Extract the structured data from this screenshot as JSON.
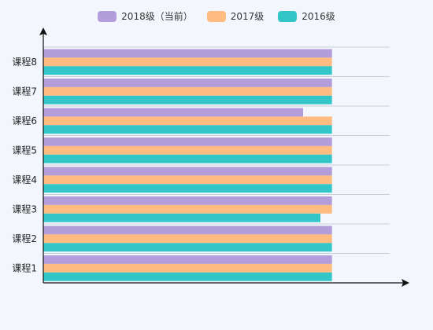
{
  "chart_data": {
    "type": "bar",
    "orientation": "horizontal",
    "title": "",
    "xlabel": "",
    "ylabel": "",
    "categories": [
      "课程1",
      "课程2",
      "课程3",
      "课程4",
      "课程5",
      "课程6",
      "课程7",
      "课程8"
    ],
    "series": [
      {
        "name": "2018级（当前）",
        "color": "#b39ddb",
        "values": [
          100,
          100,
          100,
          100,
          100,
          90,
          100,
          100
        ]
      },
      {
        "name": "2017级",
        "color": "#ffbb80",
        "values": [
          100,
          100,
          100,
          100,
          100,
          100,
          100,
          100
        ]
      },
      {
        "name": "2016级",
        "color": "#33c6c8",
        "values": [
          100,
          100,
          96,
          100,
          100,
          100,
          100,
          100
        ]
      }
    ],
    "xlim": [
      0,
      120
    ],
    "grid": true,
    "legend_position": "top-center",
    "x_tick_labels_visible": false
  }
}
